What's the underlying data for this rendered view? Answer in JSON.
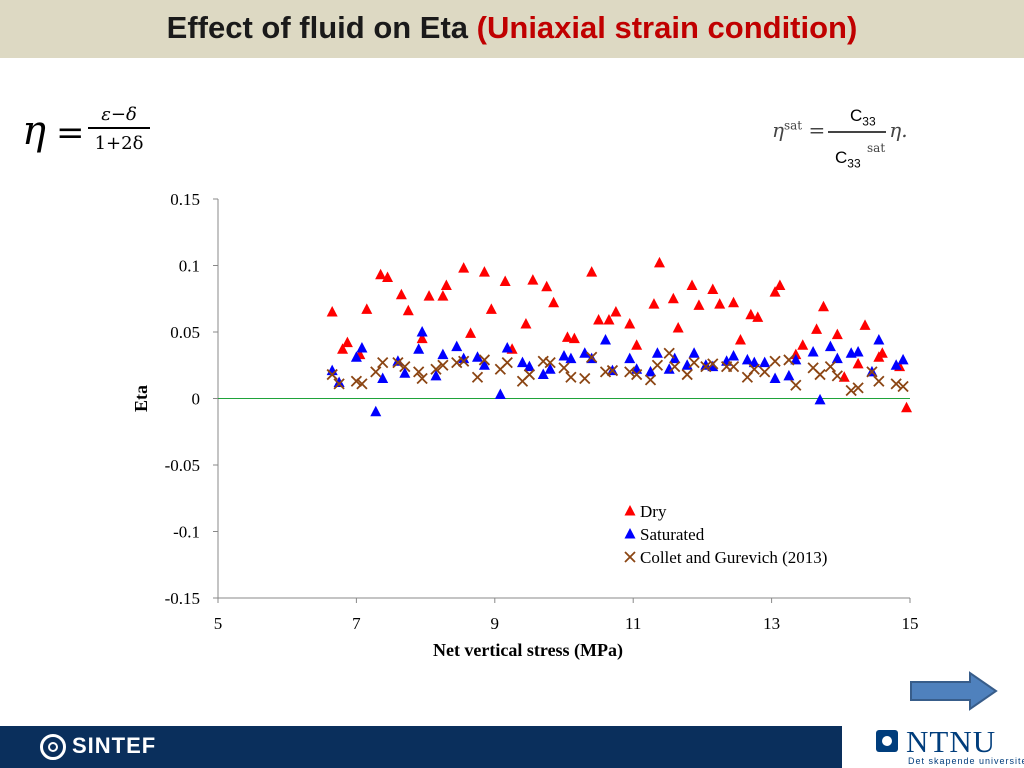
{
  "slide": {
    "title_main": "Effect of fluid on Eta",
    "title_accent": "(Uniaxial strain condition)",
    "formula_eta": "η",
    "formula_eq": "=",
    "formula_num": "ε−δ",
    "formula_den": "1+2δ",
    "sat_formula_lhs": "η",
    "sat_formula_lhs_sup": "sat",
    "sat_formula_eq": "=",
    "sat_formula_den_sup": "sat",
    "sat_formula_rhs": "η.",
    "c33_top": "C",
    "c33_top_sub": "33",
    "c33_bottom": "C",
    "c33_bottom_sub": "33"
  },
  "chart_data": {
    "type": "scatter",
    "xlabel": "Net vertical stress (MPa)",
    "ylabel": "Eta",
    "xlim": [
      5,
      15
    ],
    "ylim": [
      -0.15,
      0.15
    ],
    "xticks": [
      5,
      7,
      9,
      11,
      13,
      15
    ],
    "xtick_labels": [
      "5",
      "7",
      "9",
      "11",
      "13",
      "15"
    ],
    "yticks": [
      0.15,
      0.1,
      0.05,
      0,
      -0.05,
      -0.1,
      -0.15
    ],
    "ytick_labels": [
      "0.15",
      "0.1",
      "0.05",
      "0",
      "-0.05",
      "-0.1",
      "-0.15"
    ],
    "grid": false,
    "zero_line": true,
    "legend_position": "lower-right",
    "series": [
      {
        "name": "Dry",
        "marker": "triangle",
        "color": "#ff0000",
        "x": [
          6.65,
          6.8,
          6.87,
          7.05,
          7.15,
          7.35,
          7.45,
          7.65,
          7.75,
          7.95,
          8.05,
          8.25,
          8.3,
          8.55,
          8.65,
          8.85,
          8.95,
          9.15,
          9.25,
          9.45,
          9.55,
          9.75,
          9.85,
          10.05,
          10.15,
          10.4,
          10.5,
          10.65,
          10.75,
          10.95,
          11.05,
          11.3,
          11.38,
          11.58,
          11.65,
          11.85,
          11.95,
          12.15,
          12.25,
          12.45,
          12.55,
          12.7,
          12.8,
          13.05,
          13.12,
          13.35,
          13.45,
          13.65,
          13.75,
          13.95,
          14.05,
          14.25,
          14.35,
          14.55,
          14.6,
          14.85,
          14.95
        ],
        "y": [
          0.065,
          0.037,
          0.042,
          0.033,
          0.067,
          0.093,
          0.091,
          0.078,
          0.066,
          0.045,
          0.077,
          0.077,
          0.085,
          0.098,
          0.049,
          0.095,
          0.067,
          0.088,
          0.037,
          0.056,
          0.089,
          0.084,
          0.072,
          0.046,
          0.045,
          0.095,
          0.059,
          0.059,
          0.065,
          0.056,
          0.04,
          0.071,
          0.102,
          0.075,
          0.053,
          0.085,
          0.07,
          0.082,
          0.071,
          0.072,
          0.044,
          0.063,
          0.061,
          0.08,
          0.085,
          0.033,
          0.04,
          0.052,
          0.069,
          0.048,
          0.016,
          0.026,
          0.055,
          0.031,
          0.034,
          0.024,
          -0.007
        ]
      },
      {
        "name": "Saturated",
        "marker": "triangle",
        "color": "#0000ff",
        "x": [
          6.65,
          6.75,
          7.0,
          7.08,
          7.28,
          7.38,
          7.6,
          7.7,
          7.9,
          7.95,
          8.15,
          8.25,
          8.45,
          8.55,
          8.75,
          8.85,
          9.08,
          9.18,
          9.4,
          9.5,
          9.7,
          9.8,
          10.0,
          10.1,
          10.3,
          10.4,
          10.6,
          10.7,
          10.95,
          11.05,
          11.25,
          11.35,
          11.52,
          11.6,
          11.78,
          11.88,
          12.05,
          12.15,
          12.35,
          12.45,
          12.65,
          12.75,
          12.9,
          13.05,
          13.25,
          13.35,
          13.6,
          13.7,
          13.85,
          13.95,
          14.15,
          14.25,
          14.45,
          14.55,
          14.8,
          14.9
        ],
        "y": [
          0.021,
          0.012,
          0.031,
          0.038,
          -0.01,
          0.015,
          0.028,
          0.019,
          0.037,
          0.05,
          0.017,
          0.033,
          0.039,
          0.03,
          0.031,
          0.025,
          0.003,
          0.038,
          0.027,
          0.024,
          0.018,
          0.022,
          0.032,
          0.03,
          0.034,
          0.03,
          0.044,
          0.021,
          0.03,
          0.022,
          0.02,
          0.034,
          0.022,
          0.03,
          0.025,
          0.034,
          0.025,
          0.024,
          0.028,
          0.032,
          0.029,
          0.027,
          0.027,
          0.015,
          0.017,
          0.029,
          0.035,
          -0.001,
          0.039,
          0.03,
          0.034,
          0.035,
          0.02,
          0.044,
          0.025,
          0.029
        ]
      },
      {
        "name": "Collet and Gurevich (2013)",
        "marker": "x",
        "color": "#8b4513",
        "x": [
          6.65,
          6.75,
          7.0,
          7.08,
          7.28,
          7.38,
          7.6,
          7.7,
          7.9,
          7.95,
          8.15,
          8.25,
          8.45,
          8.55,
          8.75,
          8.85,
          9.08,
          9.18,
          9.4,
          9.5,
          9.7,
          9.8,
          10.0,
          10.1,
          10.3,
          10.4,
          10.6,
          10.7,
          10.95,
          11.05,
          11.25,
          11.35,
          11.52,
          11.6,
          11.78,
          11.88,
          12.05,
          12.15,
          12.35,
          12.45,
          12.65,
          12.75,
          12.9,
          13.05,
          13.25,
          13.35,
          13.6,
          13.7,
          13.85,
          13.95,
          14.15,
          14.25,
          14.45,
          14.55,
          14.8,
          14.9
        ],
        "y": [
          0.018,
          0.011,
          0.013,
          0.011,
          0.02,
          0.027,
          0.027,
          0.024,
          0.02,
          0.015,
          0.022,
          0.025,
          0.027,
          0.028,
          0.016,
          0.029,
          0.022,
          0.027,
          0.013,
          0.018,
          0.028,
          0.027,
          0.023,
          0.016,
          0.015,
          0.031,
          0.02,
          0.021,
          0.02,
          0.018,
          0.014,
          0.025,
          0.034,
          0.024,
          0.018,
          0.027,
          0.024,
          0.026,
          0.024,
          0.024,
          0.016,
          0.022,
          0.02,
          0.028,
          0.029,
          0.01,
          0.023,
          0.018,
          0.024,
          0.017,
          0.006,
          0.008,
          0.02,
          0.013,
          0.011,
          0.009
        ]
      }
    ]
  }
}
